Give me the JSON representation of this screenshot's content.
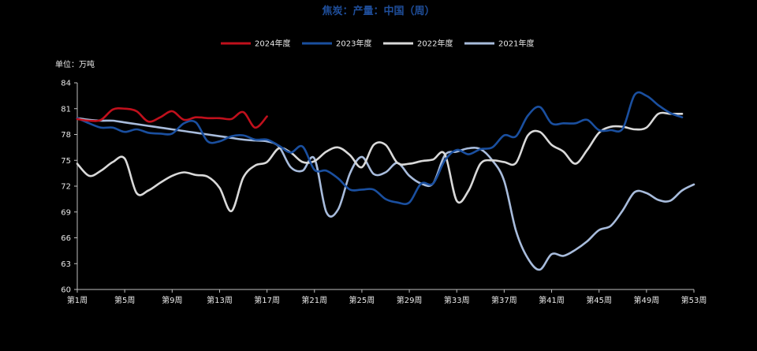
{
  "chart_data": {
    "type": "line",
    "title": "焦炭：产量：中国（周）",
    "unit_label": "单位：万吨",
    "ylim": [
      60,
      84
    ],
    "yticks": [
      60,
      63,
      66,
      69,
      72,
      75,
      78,
      81,
      84
    ],
    "xlim": [
      1,
      53
    ],
    "x_tick_labels": [
      {
        "week": 1,
        "label": "第1周"
      },
      {
        "week": 5,
        "label": "第5周"
      },
      {
        "week": 9,
        "label": "第9周"
      },
      {
        "week": 13,
        "label": "第13周"
      },
      {
        "week": 17,
        "label": "第17周"
      },
      {
        "week": 21,
        "label": "第21周"
      },
      {
        "week": 25,
        "label": "第25周"
      },
      {
        "week": 29,
        "label": "第29周"
      },
      {
        "week": 33,
        "label": "第33周"
      },
      {
        "week": 37,
        "label": "第37周"
      },
      {
        "week": 41,
        "label": "第41周"
      },
      {
        "week": 45,
        "label": "第45周"
      },
      {
        "week": 49,
        "label": "第49周"
      },
      {
        "week": 53,
        "label": "第53周"
      }
    ],
    "legend_position": "top-center",
    "series": [
      {
        "name": "2024年度",
        "color": "#c0101c",
        "x": [
          1,
          2,
          3,
          4,
          5,
          6,
          7,
          8,
          9,
          10,
          11,
          12,
          13,
          14,
          15,
          16,
          17
        ],
        "values": [
          79.8,
          79.6,
          79.7,
          80.9,
          81.0,
          80.7,
          79.5,
          80.0,
          80.7,
          79.7,
          80.0,
          79.9,
          79.9,
          79.8,
          80.6,
          78.8,
          80.1
        ]
      },
      {
        "name": "2023年度",
        "color": "#1a4f9f",
        "x": [
          1,
          2,
          3,
          4,
          5,
          6,
          7,
          8,
          9,
          10,
          11,
          12,
          13,
          14,
          15,
          16,
          17,
          18,
          19,
          20,
          21,
          22,
          23,
          24,
          25,
          26,
          27,
          28,
          29,
          30,
          31,
          32,
          33,
          34,
          35,
          36,
          37,
          38,
          39,
          40,
          41,
          42,
          43,
          44,
          45,
          46,
          47,
          48,
          49,
          50,
          51,
          52
        ],
        "values": [
          79.9,
          79.3,
          78.8,
          78.8,
          78.3,
          78.6,
          78.2,
          78.1,
          78.1,
          79.3,
          79.4,
          77.2,
          77.2,
          77.8,
          77.9,
          77.4,
          77.4,
          76.7,
          75.9,
          76.6,
          73.9,
          73.8,
          72.9,
          71.6,
          71.6,
          71.6,
          70.5,
          70.1,
          70.1,
          72.3,
          72.3,
          75.0,
          76.2,
          75.7,
          76.3,
          76.5,
          77.9,
          77.8,
          80.2,
          81.2,
          79.3,
          79.3,
          79.3,
          79.7,
          78.5,
          78.5,
          78.7,
          82.6,
          82.5,
          81.4,
          80.5,
          80.0
        ]
      },
      {
        "name": "2022年度",
        "color": "#d9d9d9",
        "x": [
          1,
          2,
          3,
          4,
          5,
          6,
          7,
          8,
          9,
          10,
          11,
          12,
          13,
          14,
          15,
          16,
          17,
          18,
          19,
          20,
          21,
          22,
          23,
          24,
          25,
          26,
          27,
          28,
          29,
          30,
          31,
          32,
          33,
          34,
          35,
          36,
          37,
          38,
          39,
          40,
          41,
          42,
          43,
          44,
          45,
          46,
          47,
          48,
          49,
          50,
          51,
          52
        ],
        "values": [
          74.6,
          73.2,
          73.8,
          74.8,
          75.2,
          71.2,
          71.5,
          72.4,
          73.2,
          73.6,
          73.3,
          73.1,
          71.8,
          69.1,
          73.0,
          74.4,
          74.8,
          76.4,
          75.9,
          74.8,
          74.9,
          76.0,
          76.5,
          75.6,
          74.2,
          76.8,
          76.8,
          74.7,
          74.6,
          74.9,
          75.1,
          75.7,
          70.3,
          71.5,
          74.6,
          75.0,
          74.8,
          74.7,
          77.9,
          78.3,
          76.8,
          76.0,
          74.6,
          76.2,
          78.2,
          78.9,
          78.9,
          78.6,
          78.8,
          80.4,
          80.4,
          80.4
        ]
      },
      {
        "name": "2021年度",
        "color": "#a8bcdc",
        "x": [
          1,
          2,
          3,
          4,
          5,
          6,
          7,
          8,
          9,
          10,
          11,
          12,
          13,
          14,
          15,
          16,
          17,
          18,
          19,
          20,
          21,
          22,
          23,
          24,
          25,
          26,
          27,
          28,
          29,
          30,
          31,
          32,
          33,
          34,
          35,
          36,
          37,
          38,
          39,
          40,
          41,
          42,
          43,
          44,
          45,
          46,
          47,
          48,
          49,
          50,
          51,
          52,
          53
        ],
        "values": [
          79.9,
          79.7,
          79.6,
          79.6,
          79.4,
          79.2,
          79.0,
          78.8,
          78.6,
          78.4,
          78.2,
          78.0,
          77.8,
          77.6,
          77.4,
          77.3,
          77.2,
          76.6,
          74.2,
          73.8,
          75.2,
          69.0,
          69.3,
          73.5,
          75.4,
          73.4,
          73.6,
          74.7,
          73.2,
          72.3,
          72.3,
          75.6,
          76.0,
          76.4,
          76.3,
          75.0,
          72.6,
          66.8,
          63.6,
          62.3,
          64.1,
          63.9,
          64.6,
          65.6,
          66.9,
          67.4,
          69.2,
          71.3,
          71.2,
          70.4,
          70.3,
          71.5,
          72.2
        ]
      }
    ]
  }
}
